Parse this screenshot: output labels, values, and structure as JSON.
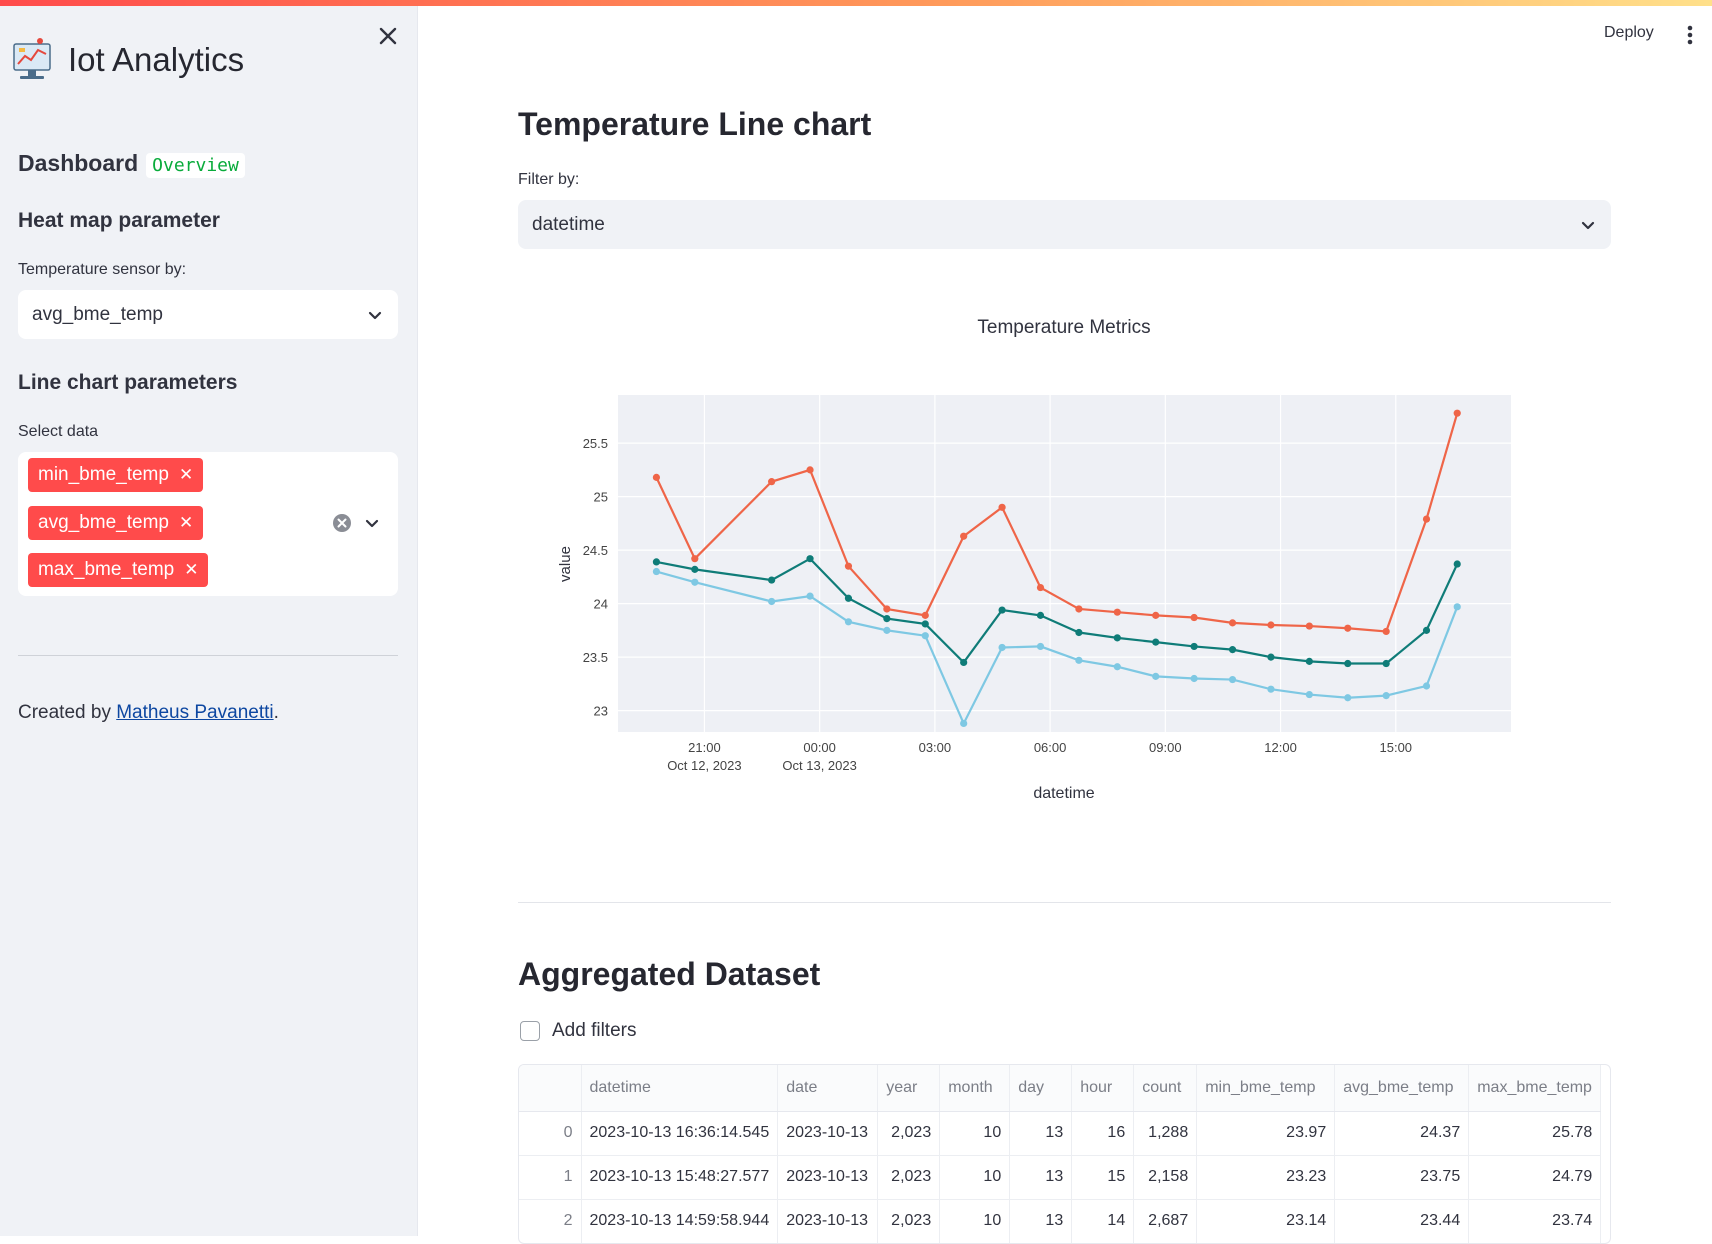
{
  "app": {
    "title": "Iot Analytics",
    "deploy_label": "Deploy"
  },
  "sidebar": {
    "dashboard_heading": "Dashboard",
    "dashboard_badge": "Overview",
    "heatmap_heading": "Heat map parameter",
    "sensor_label": "Temperature sensor by:",
    "sensor_value": "avg_bme_temp",
    "line_heading": "Line chart parameters",
    "select_label": "Select data",
    "selected_tags": [
      "min_bme_temp",
      "avg_bme_temp",
      "max_bme_temp"
    ],
    "credit_prefix": "Created by ",
    "credit_link": "Matheus Pavanetti",
    "credit_suffix": "."
  },
  "main": {
    "line_title": "Temperature Line chart",
    "filter_label": "Filter by:",
    "filter_value": "datetime",
    "dataset_title": "Aggregated Dataset",
    "add_filters_label": "Add filters"
  },
  "chart_data": {
    "type": "line",
    "title": "Temperature Metrics",
    "xlabel": "datetime",
    "ylabel": "value",
    "ylim": [
      22.8,
      25.95
    ],
    "yticks": [
      23,
      23.5,
      24,
      24.5,
      25,
      25.5
    ],
    "xlim": [
      "2023-10-12 18:45",
      "2023-10-13 18:00"
    ],
    "xticks": [
      {
        "at": "2023-10-12 21:00",
        "line1": "21:00",
        "line2": "Oct 12, 2023"
      },
      {
        "at": "2023-10-13 00:00",
        "line1": "00:00",
        "line2": "Oct 13, 2023"
      },
      {
        "at": "2023-10-13 03:00",
        "line1": "03:00",
        "line2": ""
      },
      {
        "at": "2023-10-13 06:00",
        "line1": "06:00",
        "line2": ""
      },
      {
        "at": "2023-10-13 09:00",
        "line1": "09:00",
        "line2": ""
      },
      {
        "at": "2023-10-13 12:00",
        "line1": "12:00",
        "line2": ""
      },
      {
        "at": "2023-10-13 15:00",
        "line1": "15:00",
        "line2": ""
      }
    ],
    "x": [
      "2023-10-12 19:45",
      "2023-10-12 20:45",
      "2023-10-12 22:45",
      "2023-10-12 23:45",
      "2023-10-13 00:45",
      "2023-10-13 01:45",
      "2023-10-13 02:45",
      "2023-10-13 03:45",
      "2023-10-13 04:45",
      "2023-10-13 05:45",
      "2023-10-13 06:45",
      "2023-10-13 07:45",
      "2023-10-13 08:45",
      "2023-10-13 09:45",
      "2023-10-13 10:45",
      "2023-10-13 11:45",
      "2023-10-13 12:45",
      "2023-10-13 13:45",
      "2023-10-13 14:45",
      "2023-10-13 15:48",
      "2023-10-13 16:36"
    ],
    "series": [
      {
        "name": "min_bme_temp",
        "color": "#7ec8e3",
        "values": [
          24.3,
          24.2,
          24.02,
          24.07,
          23.83,
          23.75,
          23.7,
          22.88,
          23.59,
          23.6,
          23.47,
          23.41,
          23.32,
          23.3,
          23.29,
          23.2,
          23.15,
          23.12,
          23.14,
          23.23,
          23.97
        ]
      },
      {
        "name": "avg_bme_temp",
        "color": "#0f7c78",
        "values": [
          24.39,
          24.32,
          24.22,
          24.42,
          24.05,
          23.86,
          23.81,
          23.45,
          23.94,
          23.89,
          23.73,
          23.68,
          23.64,
          23.6,
          23.57,
          23.5,
          23.46,
          23.44,
          23.44,
          23.75,
          24.37
        ]
      },
      {
        "name": "max_bme_temp",
        "color": "#ef6548",
        "values": [
          25.18,
          24.42,
          25.14,
          25.25,
          24.35,
          23.95,
          23.89,
          24.63,
          24.9,
          24.15,
          23.95,
          23.92,
          23.89,
          23.87,
          23.82,
          23.8,
          23.79,
          23.77,
          23.74,
          24.79,
          25.78
        ]
      }
    ]
  },
  "table": {
    "columns": [
      "",
      "datetime",
      "date",
      "year",
      "month",
      "day",
      "hour",
      "count",
      "min_bme_temp",
      "avg_bme_temp",
      "max_bme_temp"
    ],
    "rows": [
      [
        "0",
        "2023-10-13 16:36:14.545",
        "2023-10-13",
        "2,023",
        "10",
        "13",
        "16",
        "1,288",
        "23.97",
        "24.37",
        "25.78"
      ],
      [
        "1",
        "2023-10-13 15:48:27.577",
        "2023-10-13",
        "2,023",
        "10",
        "13",
        "15",
        "2,158",
        "23.23",
        "23.75",
        "24.79"
      ],
      [
        "2",
        "2023-10-13 14:59:58.944",
        "2023-10-13",
        "2,023",
        "10",
        "13",
        "14",
        "2,687",
        "23.14",
        "23.44",
        "23.74"
      ]
    ]
  }
}
